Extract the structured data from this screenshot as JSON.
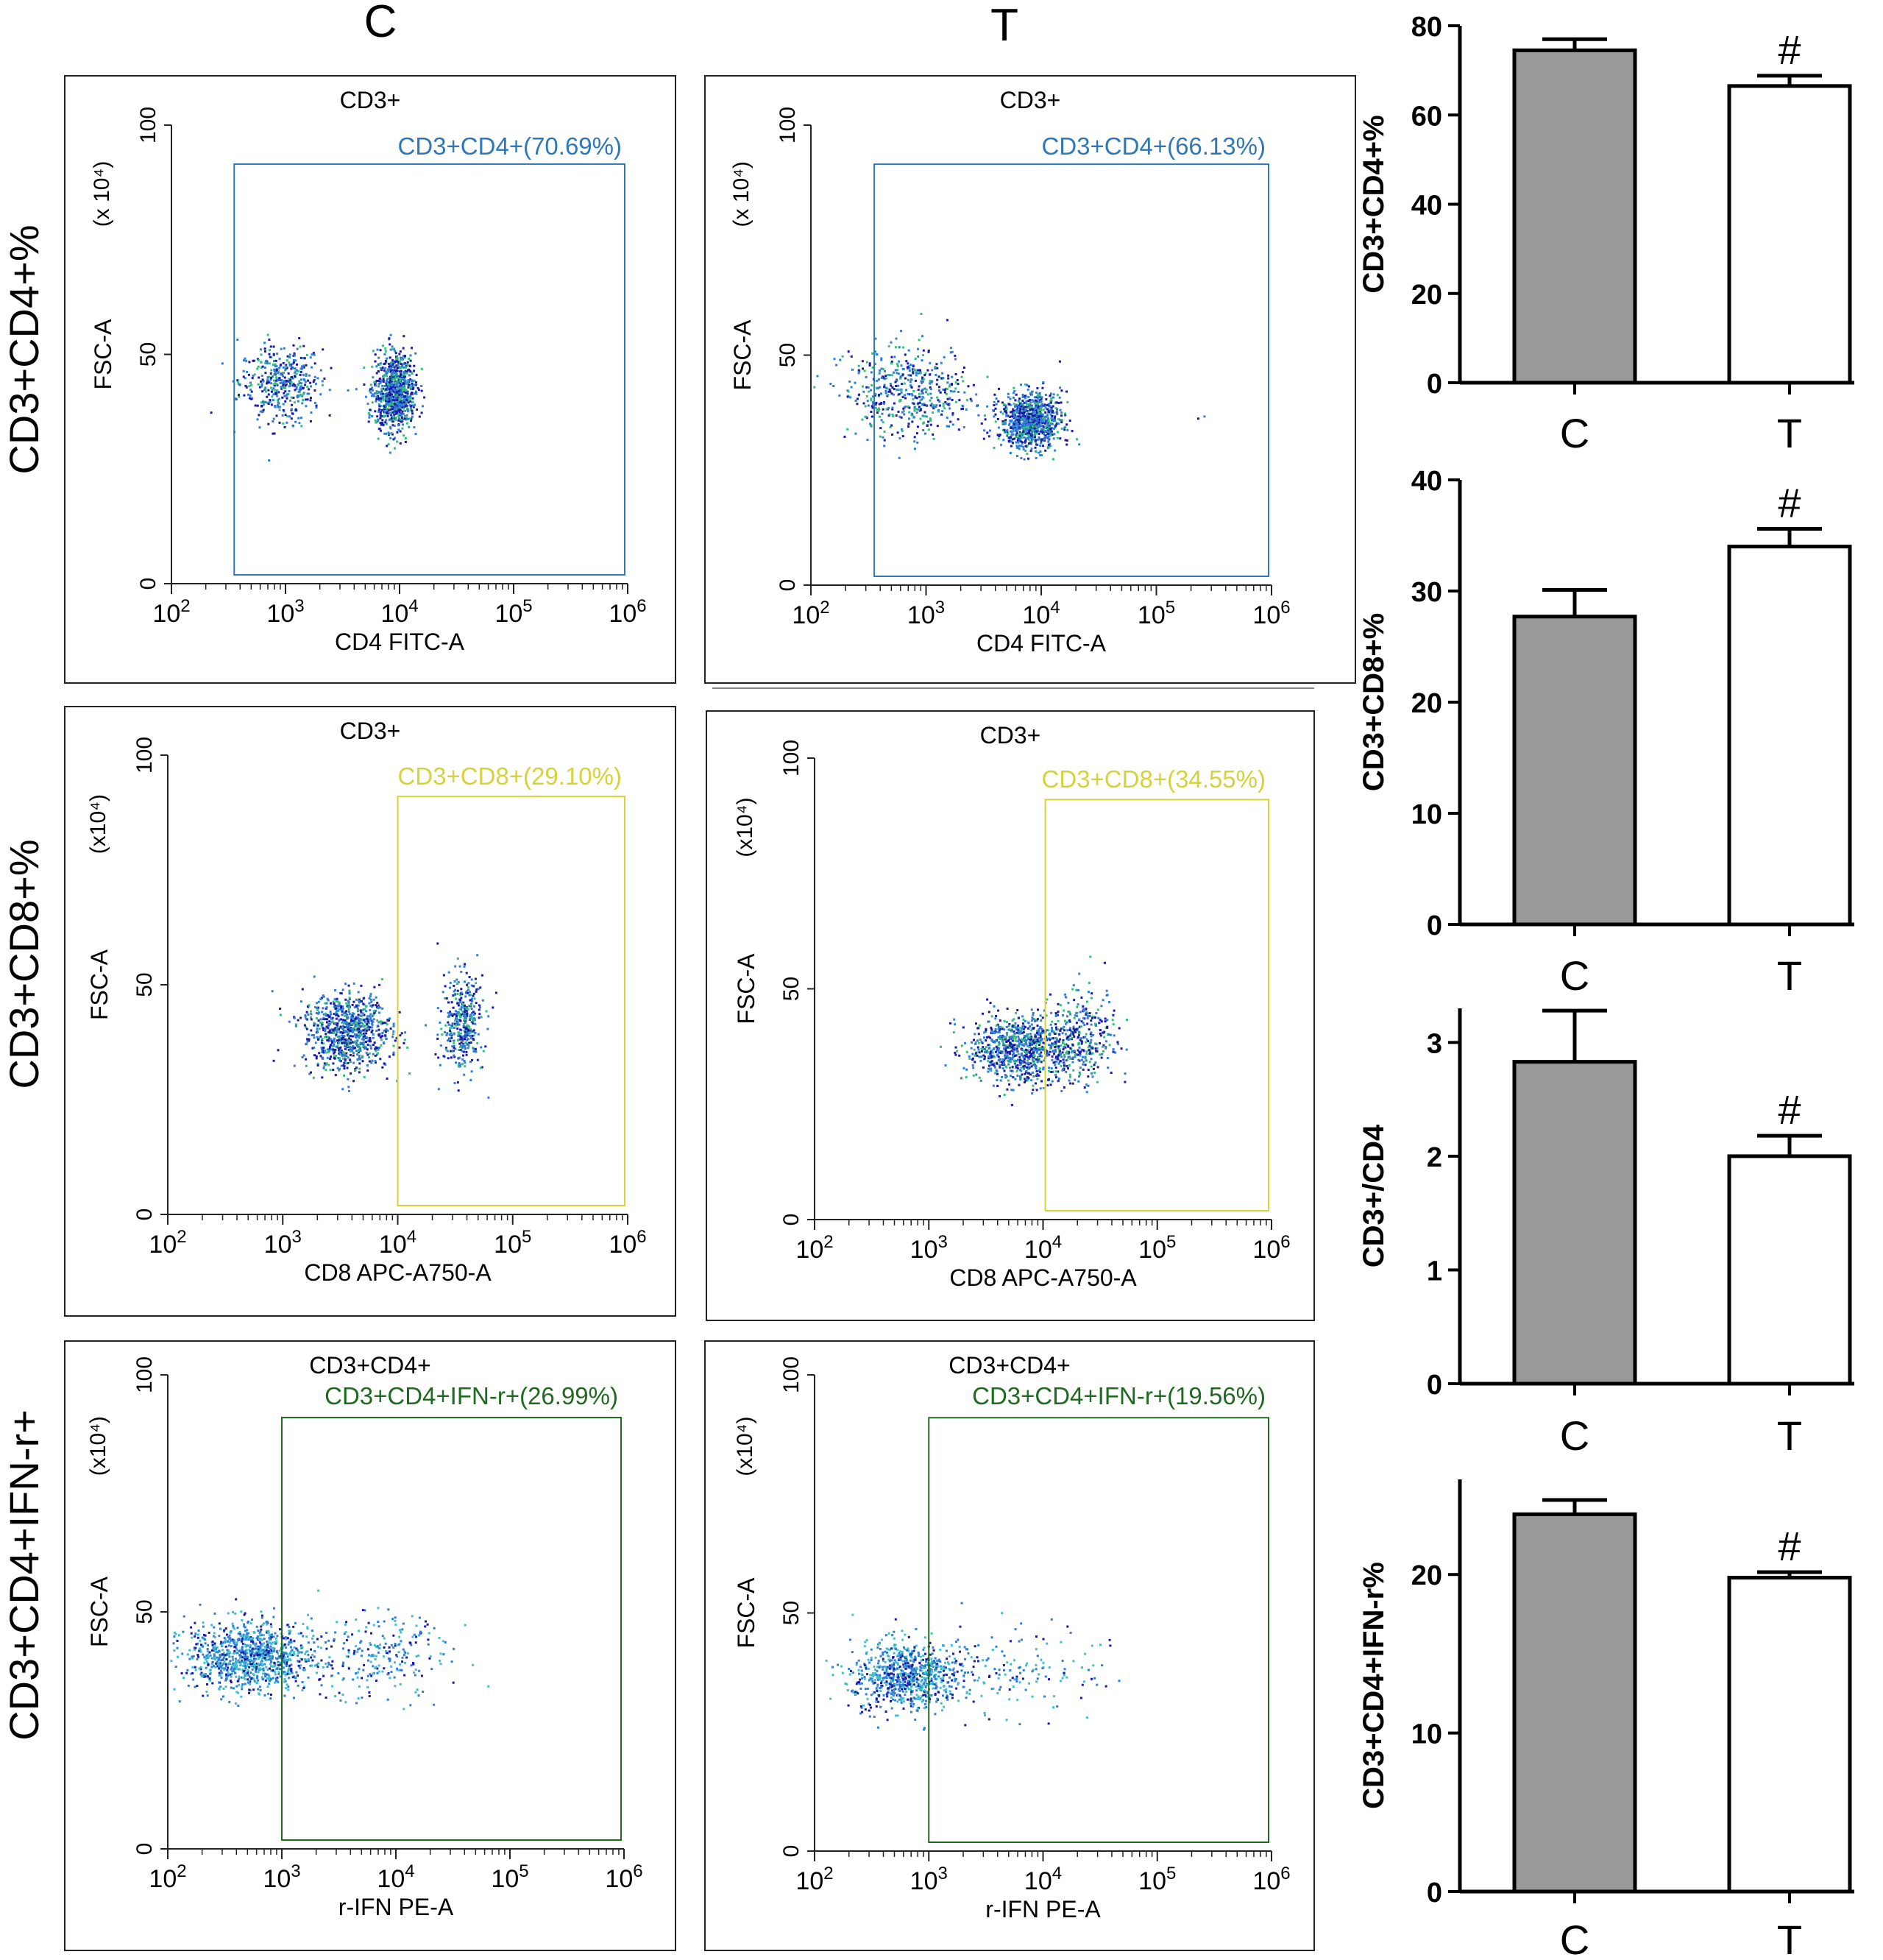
{
  "column_titles": [
    "C",
    "T"
  ],
  "colors": {
    "cd4_gate": "#2f78b7",
    "cd8_gate": "#d6d23c",
    "ifn_gate": "#1e6a1e",
    "bar_c": "#999999",
    "bar_t": "#ffffff",
    "dot_dark": "#1a1aa6",
    "dot_mid": "#2f7fd6",
    "dot_light": "#3fbfd0",
    "dot_hot": "#32c07a"
  },
  "rows": [
    {
      "row_label": "CD3+CD4+%",
      "panels": [
        {
          "title": "CD3+",
          "gate_label": "CD3+CD4+(70.69%)",
          "xlabel": "CD4 FITC-A",
          "ylabel": "FSC-A",
          "y_unit": "(x 10⁴)",
          "gate_color": "cd4_gate",
          "gate_x_start": 2.55,
          "gate_pct": 70.69
        },
        {
          "title": "CD3+",
          "gate_label": "CD3+CD4+(66.13%)",
          "xlabel": "CD4 FITC-A",
          "ylabel": "FSC-A",
          "y_unit": "(x 10⁴)",
          "gate_color": "cd4_gate",
          "gate_x_start": 2.55,
          "gate_pct": 66.13
        }
      ]
    },
    {
      "row_label": "CD3+CD8+%",
      "panels": [
        {
          "title": "CD3+",
          "gate_label": "CD3+CD8+(29.10%)",
          "xlabel": "CD8 APC-A750-A",
          "ylabel": "FSC-A",
          "y_unit": "(x10⁴)",
          "gate_color": "cd8_gate",
          "gate_x_start": 4.0,
          "gate_pct": 29.1
        },
        {
          "title": "CD3+",
          "gate_label": "CD3+CD8+(34.55%)",
          "xlabel": "CD8 APC-A750-A",
          "ylabel": "FSC-A",
          "y_unit": "(x10⁴)",
          "gate_color": "cd8_gate",
          "gate_x_start": 4.02,
          "gate_pct": 34.55
        }
      ]
    },
    {
      "row_label": "CD3+CD4+IFN-r+",
      "panels": [
        {
          "title": "CD3+CD4+",
          "gate_label": "CD3+CD4+IFN-r+(26.99%)",
          "xlabel": "r-IFN PE-A",
          "ylabel": "FSC-A",
          "y_unit": "(x10⁴)",
          "gate_color": "ifn_gate",
          "gate_x_start": 3.0,
          "gate_pct": 26.99
        },
        {
          "title": "CD3+CD4+",
          "gate_label": "CD3+CD4+IFN-r+(19.56%)",
          "xlabel": "r-IFN PE-A",
          "ylabel": "FSC-A",
          "y_unit": "(x10⁴)",
          "gate_color": "ifn_gate",
          "gate_x_start": 3.0,
          "gate_pct": 19.56
        }
      ]
    }
  ],
  "flow_axes": {
    "x_ticks": [
      {
        "base": "10",
        "exp": "2"
      },
      {
        "base": "10",
        "exp": "3"
      },
      {
        "base": "10",
        "exp": "4"
      },
      {
        "base": "10",
        "exp": "5"
      },
      {
        "base": "10",
        "exp": "6"
      }
    ],
    "x_range_log10": [
      2,
      6
    ],
    "y_ticks": [
      "0",
      "50",
      "100"
    ],
    "y_range": [
      0,
      100
    ]
  },
  "chart_data": [
    {
      "type": "bar",
      "categories": [
        "C",
        "T"
      ],
      "values": [
        74.5,
        66.5
      ],
      "errors": [
        2.5,
        2.3
      ],
      "ylabel": "CD3+CD4+%",
      "ylim": [
        0,
        80
      ],
      "yticks": [
        0,
        20,
        40,
        60,
        80
      ],
      "markers": [
        "",
        "#"
      ]
    },
    {
      "type": "bar",
      "categories": [
        "C",
        "T"
      ],
      "values": [
        27.7,
        34.0
      ],
      "errors": [
        2.4,
        1.6
      ],
      "ylabel": "CD3+CD8+%",
      "ylim": [
        0,
        40
      ],
      "yticks": [
        0,
        10,
        20,
        30,
        40
      ],
      "markers": [
        "",
        "#"
      ]
    },
    {
      "type": "bar",
      "categories": [
        "C",
        "T"
      ],
      "values": [
        2.83,
        2.0
      ],
      "errors": [
        0.45,
        0.18
      ],
      "ylabel": "CD3+/CD4",
      "ylim": [
        0,
        3.3
      ],
      "yticks": [
        0,
        1,
        2,
        3
      ],
      "markers": [
        "",
        "#"
      ]
    },
    {
      "type": "bar",
      "categories": [
        "C",
        "T"
      ],
      "values": [
        23.8,
        19.8
      ],
      "errors": [
        0.9,
        0.35
      ],
      "ylabel": "CD3+CD4+IFN-r%",
      "ylim": [
        0,
        26
      ],
      "yticks": [
        0,
        10,
        20
      ],
      "markers": [
        "",
        "#"
      ]
    }
  ]
}
